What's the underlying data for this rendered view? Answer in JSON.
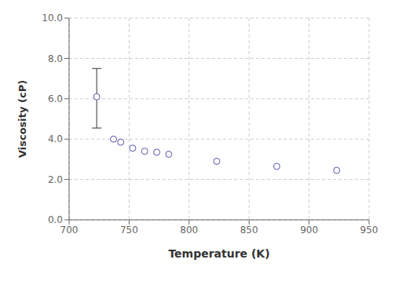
{
  "chart_data": {
    "type": "scatter",
    "x_label": "Temperature (K)",
    "y_label": "Viscosity (cP)",
    "x": [
      723,
      737,
      743,
      753,
      763,
      773,
      783,
      823,
      873,
      923
    ],
    "values": [
      6.1,
      4.0,
      3.85,
      3.55,
      3.4,
      3.35,
      3.25,
      2.9,
      2.65,
      2.45
    ],
    "color": "#5555aa",
    "marker": "open circle",
    "error_bar": {
      "x": 723,
      "y": 6.1,
      "lower": 1.55,
      "upper": 1.4,
      "color": "#333333"
    },
    "xlim": [
      700,
      950
    ],
    "ylim": [
      0.0,
      10.0
    ],
    "xticks": [
      700,
      750,
      800,
      850,
      900,
      950
    ],
    "yticks": [
      {
        "value": 0,
        "label": "0.0"
      },
      {
        "value": 2,
        "label": "2.0"
      },
      {
        "value": 4,
        "label": "4.0"
      },
      {
        "value": 6,
        "label": "6.0"
      },
      {
        "value": 8,
        "label": "8.0"
      },
      {
        "value": 10,
        "label": "10.0"
      }
    ],
    "grid": true
  }
}
